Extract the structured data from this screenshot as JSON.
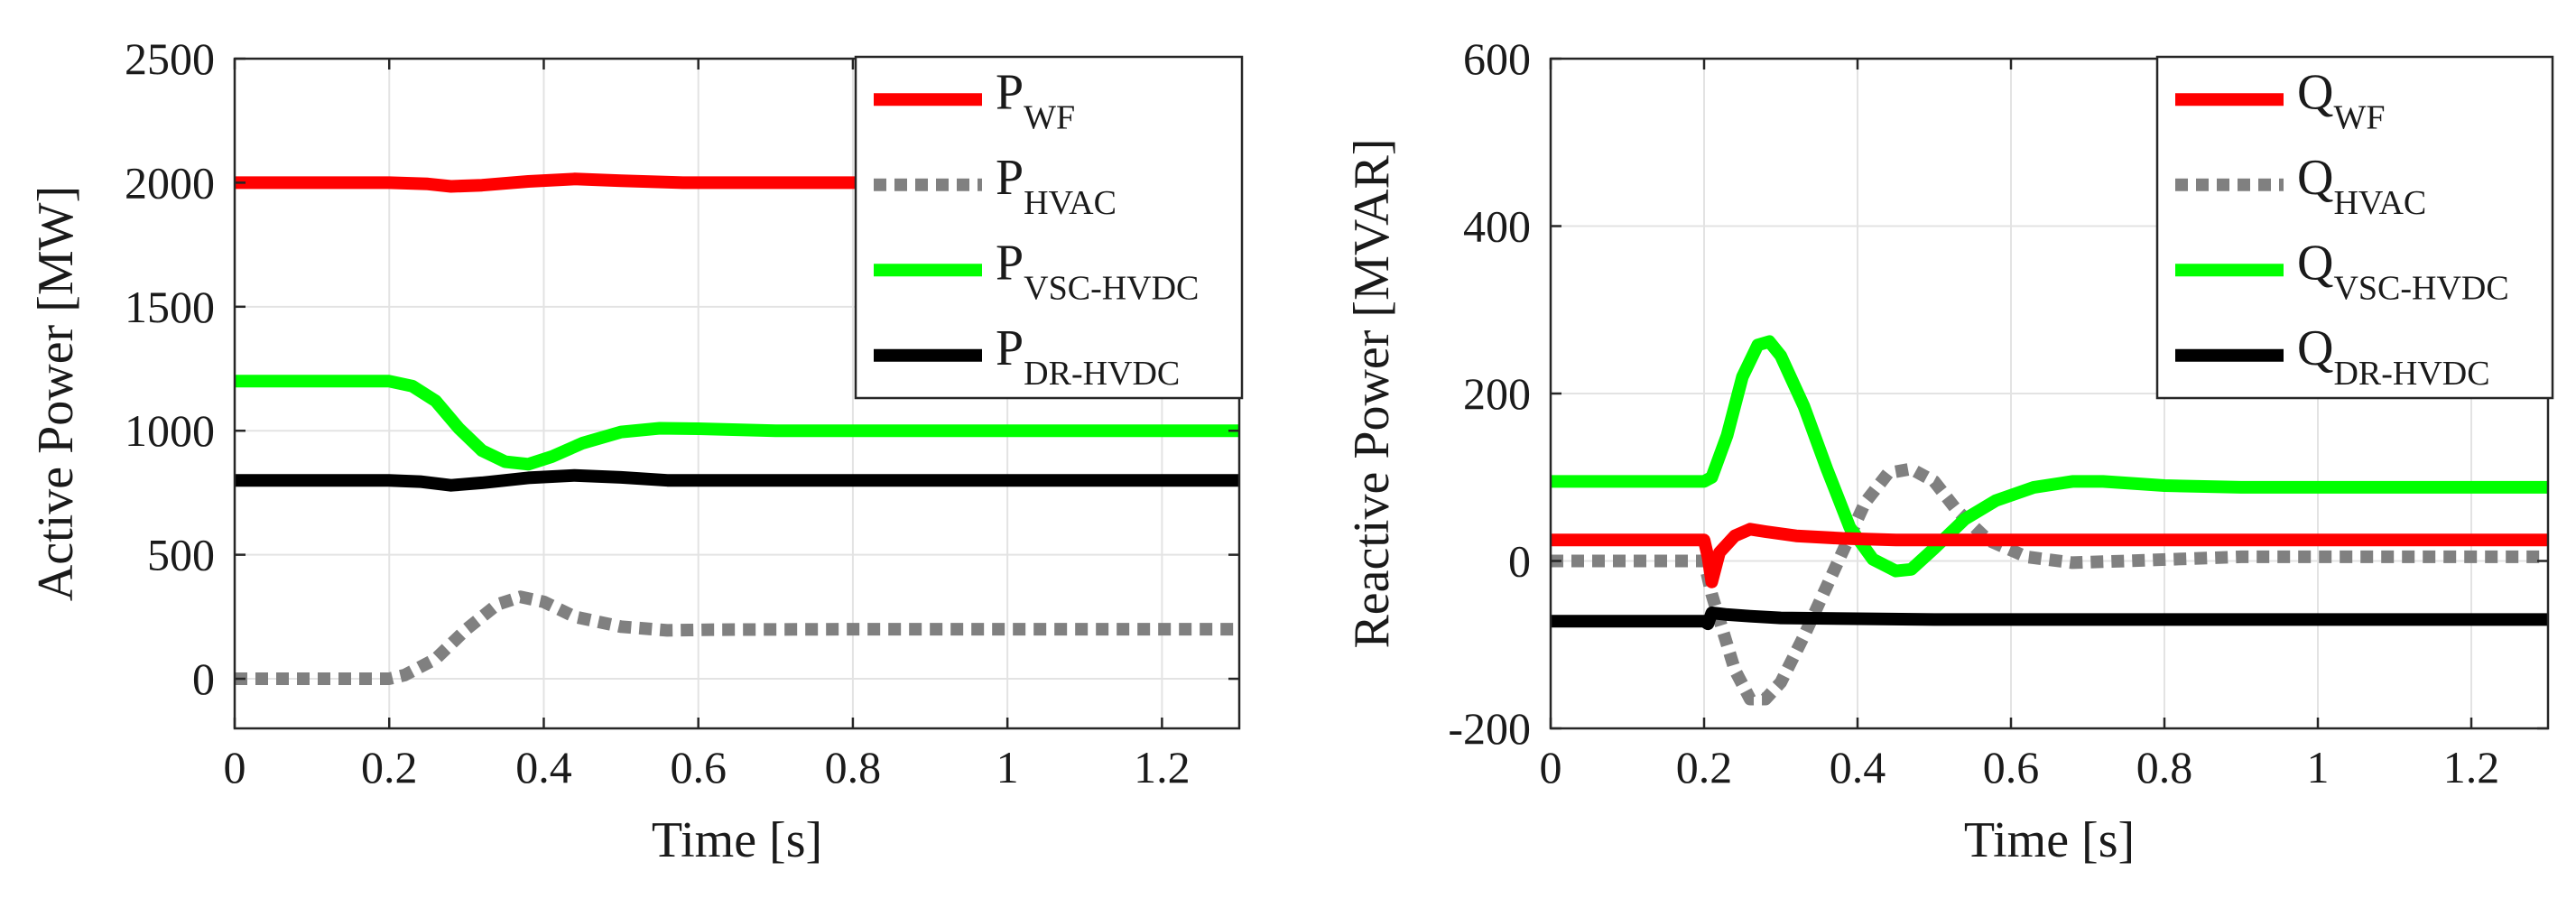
{
  "chart_data": [
    {
      "type": "line",
      "title": "",
      "xlabel": "Time [s]",
      "ylabel": "Active Power [MW]",
      "xlim": [
        0,
        1.3
      ],
      "ylim": [
        -200,
        2500
      ],
      "xticks": [
        0,
        0.2,
        0.4,
        0.6,
        0.8,
        1.0,
        1.2
      ],
      "xtick_labels": [
        "0",
        "0.2",
        "0.4",
        "0.6",
        "0.8",
        "1",
        "1.2"
      ],
      "yticks": [
        0,
        500,
        1000,
        1500,
        2000,
        2500
      ],
      "ytick_labels": [
        "0",
        "500",
        "1000",
        "1500",
        "2000",
        "2500"
      ],
      "grid": true,
      "legend_position": "top-right",
      "series": [
        {
          "name": "P_WF",
          "label": "P",
          "subscript": "WF",
          "color": "#ff0000",
          "style": "solid",
          "x": [
            0,
            0.2,
            0.25,
            0.28,
            0.32,
            0.38,
            0.44,
            0.5,
            0.58,
            0.7,
            0.9,
            1.1,
            1.3
          ],
          "y": [
            2000,
            2000,
            1995,
            1985,
            1990,
            2005,
            2015,
            2008,
            2000,
            2000,
            2000,
            2000,
            2000
          ]
        },
        {
          "name": "P_HVAC",
          "label": "P",
          "subscript": "HVAC",
          "color": "#808080",
          "style": "dotted",
          "x": [
            0,
            0.2,
            0.22,
            0.26,
            0.3,
            0.34,
            0.37,
            0.4,
            0.44,
            0.5,
            0.56,
            0.62,
            0.8,
            1.0,
            1.3
          ],
          "y": [
            0,
            0,
            15,
            80,
            200,
            300,
            330,
            310,
            250,
            210,
            195,
            198,
            200,
            200,
            200
          ]
        },
        {
          "name": "P_VSC-HVDC",
          "label": "P",
          "subscript": "VSC-HVDC",
          "color": "#00ff00",
          "style": "solid",
          "x": [
            0,
            0.2,
            0.23,
            0.26,
            0.29,
            0.32,
            0.35,
            0.38,
            0.41,
            0.45,
            0.5,
            0.55,
            0.6,
            0.7,
            0.8,
            1.0,
            1.3
          ],
          "y": [
            1200,
            1200,
            1180,
            1120,
            1010,
            920,
            875,
            865,
            895,
            950,
            995,
            1010,
            1008,
            1000,
            1000,
            1000,
            1000
          ]
        },
        {
          "name": "P_DR-HVDC",
          "label": "P",
          "subscript": "DR-HVDC",
          "color": "#000000",
          "style": "solid",
          "x": [
            0,
            0.2,
            0.24,
            0.28,
            0.32,
            0.38,
            0.44,
            0.5,
            0.56,
            0.7,
            0.9,
            1.3
          ],
          "y": [
            800,
            800,
            795,
            780,
            790,
            810,
            820,
            812,
            800,
            800,
            800,
            800
          ]
        }
      ]
    },
    {
      "type": "line",
      "title": "",
      "xlabel": "Time [s]",
      "ylabel": "Reactive Power [MVAR]",
      "xlim": [
        0,
        1.3
      ],
      "ylim": [
        -200,
        600
      ],
      "xticks": [
        0,
        0.2,
        0.4,
        0.6,
        0.8,
        1.0,
        1.2
      ],
      "xtick_labels": [
        "0",
        "0.2",
        "0.4",
        "0.6",
        "0.8",
        "1",
        "1.2"
      ],
      "yticks": [
        -200,
        0,
        200,
        400,
        600
      ],
      "ytick_labels": [
        "-200",
        "0",
        "200",
        "400",
        "600"
      ],
      "grid": true,
      "legend_position": "top-right",
      "series": [
        {
          "name": "Q_WF",
          "label": "Q",
          "subscript": "WF",
          "color": "#ff0000",
          "style": "solid",
          "x": [
            0,
            0.2,
            0.205,
            0.21,
            0.22,
            0.24,
            0.26,
            0.28,
            0.32,
            0.38,
            0.45,
            0.6,
            0.8,
            1.0,
            1.3
          ],
          "y": [
            25,
            25,
            5,
            -25,
            10,
            30,
            38,
            35,
            30,
            27,
            25,
            25,
            25,
            25,
            25
          ]
        },
        {
          "name": "Q_HVAC",
          "label": "Q",
          "subscript": "HVAC",
          "color": "#808080",
          "style": "dotted",
          "x": [
            0,
            0.2,
            0.21,
            0.22,
            0.24,
            0.26,
            0.28,
            0.3,
            0.33,
            0.37,
            0.41,
            0.44,
            0.47,
            0.5,
            0.53,
            0.57,
            0.62,
            0.68,
            0.75,
            0.9,
            1.1,
            1.3
          ],
          "y": [
            0,
            0,
            -40,
            -70,
            -130,
            -165,
            -165,
            -145,
            -90,
            -10,
            70,
            105,
            110,
            95,
            60,
            25,
            5,
            -2,
            0,
            5,
            5,
            5
          ]
        },
        {
          "name": "Q_VSC-HVDC",
          "label": "Q",
          "subscript": "VSC-HVDC",
          "color": "#00ff00",
          "style": "solid",
          "x": [
            0,
            0.2,
            0.21,
            0.23,
            0.25,
            0.27,
            0.285,
            0.3,
            0.33,
            0.36,
            0.39,
            0.42,
            0.45,
            0.47,
            0.5,
            0.54,
            0.58,
            0.63,
            0.68,
            0.72,
            0.8,
            0.9,
            1.0,
            1.3
          ],
          "y": [
            95,
            95,
            100,
            150,
            220,
            258,
            262,
            245,
            185,
            110,
            40,
            2,
            -12,
            -10,
            15,
            50,
            72,
            88,
            95,
            95,
            90,
            88,
            88,
            88
          ]
        },
        {
          "name": "Q_DR-HVDC",
          "label": "Q",
          "subscript": "DR-HVDC",
          "color": "#000000",
          "style": "solid",
          "x": [
            0,
            0.2,
            0.205,
            0.21,
            0.23,
            0.26,
            0.3,
            0.4,
            0.5,
            0.6,
            0.8,
            1.0,
            1.3
          ],
          "y": [
            -72,
            -72,
            -75,
            -62,
            -64,
            -66,
            -68,
            -69,
            -70,
            -70,
            -70,
            -70,
            -70
          ]
        }
      ]
    }
  ]
}
